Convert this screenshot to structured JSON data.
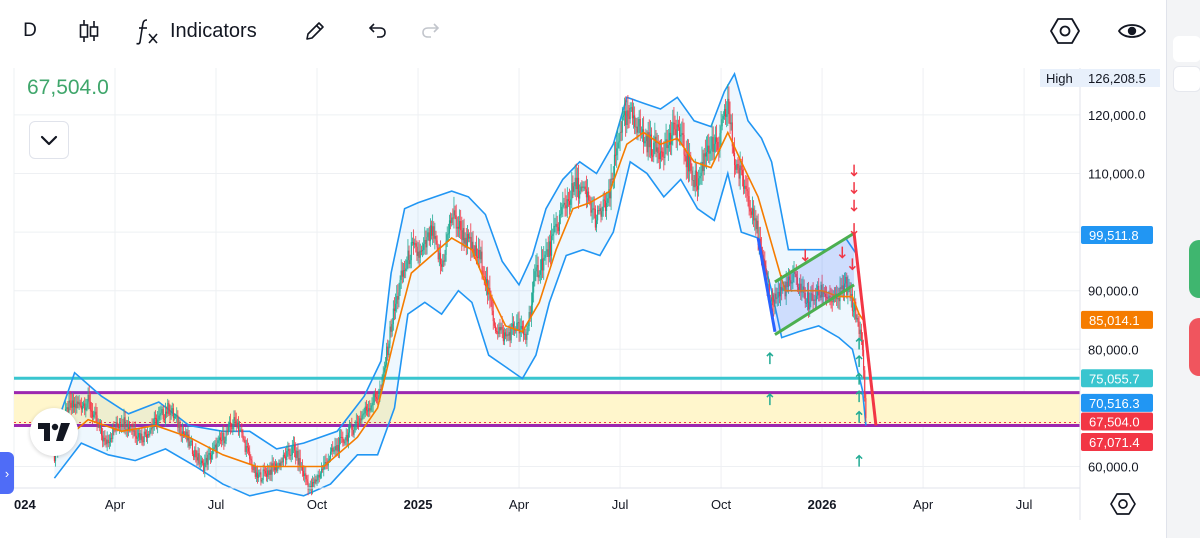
{
  "toolbar": {
    "timeframe": "D",
    "indicators_label": "Indicators",
    "icons": [
      "candles-icon",
      "fx-icon",
      "pencil-icon",
      "undo-icon",
      "redo-icon",
      "hexagon-settings-icon",
      "eye-icon"
    ]
  },
  "last_price_display": "67,504.0",
  "colors": {
    "up": "#22ab94",
    "down": "#f23645",
    "bollinger": "#2196f3",
    "ema": "#f57c00",
    "channel": "#4caf50",
    "cyan_line": "#39c5cf",
    "purple_line": "#9c27b0",
    "zone_fill": "#fff6cc"
  },
  "chart_data": {
    "type": "candlestick",
    "symbol_interval": "D",
    "price_axis": {
      "range": [
        57000,
        128000
      ],
      "ticks": [
        {
          "value": 60000,
          "label": "60,000.0"
        },
        {
          "value": 80000,
          "label": "80,000.0"
        },
        {
          "value": 90000,
          "label": "90,000.0"
        },
        {
          "value": 110000,
          "label": "110,000.0"
        },
        {
          "value": 120000,
          "label": "120,000.0"
        }
      ],
      "high_label": "High",
      "high_value": "126,208.5"
    },
    "time_axis": {
      "labels": [
        {
          "label": "024",
          "month_index": 0,
          "bold": true
        },
        {
          "label": "Apr",
          "month_index": 3,
          "bold": false
        },
        {
          "label": "Jul",
          "month_index": 6,
          "bold": false
        },
        {
          "label": "Oct",
          "month_index": 9,
          "bold": false
        },
        {
          "label": "2025",
          "month_index": 12,
          "bold": true
        },
        {
          "label": "Apr",
          "month_index": 15,
          "bold": false
        },
        {
          "label": "Jul",
          "month_index": 18,
          "bold": false
        },
        {
          "label": "Oct",
          "month_index": 21,
          "bold": false
        },
        {
          "label": "2026",
          "month_index": 24,
          "bold": true
        },
        {
          "label": "Apr",
          "month_index": 27,
          "bold": false
        },
        {
          "label": "Jul",
          "month_index": 30,
          "bold": false
        }
      ]
    },
    "price_path": [
      [
        1.2,
        62000
      ],
      [
        1.6,
        70000
      ],
      [
        2.2,
        71000
      ],
      [
        2.7,
        64000
      ],
      [
        3.2,
        68000
      ],
      [
        3.8,
        65000
      ],
      [
        4.6,
        70000
      ],
      [
        5.2,
        64000
      ],
      [
        5.6,
        60000
      ],
      [
        6.1,
        64000
      ],
      [
        6.6,
        68000
      ],
      [
        7.2,
        58000
      ],
      [
        7.8,
        60000
      ],
      [
        8.3,
        63000
      ],
      [
        8.8,
        56000
      ],
      [
        9.4,
        62000
      ],
      [
        10.0,
        66000
      ],
      [
        10.5,
        70000
      ],
      [
        10.9,
        73000
      ],
      [
        11.2,
        84000
      ],
      [
        11.5,
        92000
      ],
      [
        11.8,
        97000
      ],
      [
        12.1,
        96000
      ],
      [
        12.4,
        100000
      ],
      [
        12.7,
        94000
      ],
      [
        13.0,
        103000
      ],
      [
        13.3,
        100000
      ],
      [
        13.6,
        97000
      ],
      [
        13.9,
        95000
      ],
      [
        14.1,
        89000
      ],
      [
        14.3,
        84000
      ],
      [
        14.6,
        82000
      ],
      [
        14.9,
        84000
      ],
      [
        15.2,
        82000
      ],
      [
        15.5,
        93000
      ],
      [
        15.9,
        97000
      ],
      [
        16.3,
        104000
      ],
      [
        16.7,
        108000
      ],
      [
        17.0,
        106000
      ],
      [
        17.3,
        102000
      ],
      [
        17.7,
        106000
      ],
      [
        18.0,
        118000
      ],
      [
        18.4,
        120000
      ],
      [
        18.7,
        116000
      ],
      [
        19.1,
        114000
      ],
      [
        19.4,
        115000
      ],
      [
        19.7,
        118000
      ],
      [
        20.0,
        112000
      ],
      [
        20.3,
        108000
      ],
      [
        20.6,
        115000
      ],
      [
        20.9,
        114000
      ],
      [
        21.2,
        122000
      ],
      [
        21.4,
        112000
      ],
      [
        21.7,
        108000
      ],
      [
        22.0,
        103000
      ],
      [
        22.2,
        95000
      ],
      [
        22.5,
        88000
      ],
      [
        22.8,
        90000
      ],
      [
        23.2,
        92000
      ],
      [
        23.6,
        88000
      ],
      [
        24.0,
        90000
      ],
      [
        24.4,
        88000
      ],
      [
        24.7,
        91000
      ],
      [
        24.95,
        87000
      ],
      [
        25.1,
        84000
      ],
      [
        25.22,
        78000
      ],
      [
        25.3,
        67504
      ]
    ],
    "bollinger_bands": {
      "upper": [
        [
          1.2,
          66000
        ],
        [
          1.8,
          76000
        ],
        [
          2.6,
          72000
        ],
        [
          3.4,
          69000
        ],
        [
          4.3,
          71000
        ],
        [
          5.2,
          67000
        ],
        [
          6.2,
          66000
        ],
        [
          7.0,
          66000
        ],
        [
          7.8,
          63000
        ],
        [
          8.6,
          64000
        ],
        [
          9.6,
          66000
        ],
        [
          10.4,
          72000
        ],
        [
          10.9,
          78000
        ],
        [
          11.2,
          93000
        ],
        [
          11.6,
          104000
        ],
        [
          12.0,
          105000
        ],
        [
          12.5,
          106000
        ],
        [
          13.0,
          107000
        ],
        [
          13.5,
          106000
        ],
        [
          14.0,
          103000
        ],
        [
          14.5,
          95000
        ],
        [
          15.0,
          91000
        ],
        [
          15.4,
          96000
        ],
        [
          15.8,
          104000
        ],
        [
          16.3,
          109000
        ],
        [
          16.8,
          112000
        ],
        [
          17.3,
          110000
        ],
        [
          17.8,
          115000
        ],
        [
          18.2,
          123000
        ],
        [
          18.7,
          122000
        ],
        [
          19.2,
          121000
        ],
        [
          19.7,
          123000
        ],
        [
          20.2,
          119000
        ],
        [
          20.7,
          118000
        ],
        [
          21.1,
          124000
        ],
        [
          21.4,
          127000
        ],
        [
          21.8,
          119000
        ],
        [
          22.2,
          116000
        ],
        [
          22.5,
          112000
        ],
        [
          23.0,
          97000
        ],
        [
          23.6,
          97000
        ],
        [
          24.2,
          97000
        ],
        [
          24.7,
          99000
        ],
        [
          25.05,
          96000
        ]
      ],
      "lower": [
        [
          1.2,
          58000
        ],
        [
          2.0,
          64000
        ],
        [
          2.8,
          62000
        ],
        [
          3.6,
          61000
        ],
        [
          4.5,
          63000
        ],
        [
          5.4,
          60000
        ],
        [
          6.2,
          57000
        ],
        [
          7.0,
          55000
        ],
        [
          7.8,
          56000
        ],
        [
          8.6,
          55000
        ],
        [
          9.4,
          57000
        ],
        [
          10.2,
          62000
        ],
        [
          10.8,
          62000
        ],
        [
          11.3,
          70000
        ],
        [
          11.7,
          86000
        ],
        [
          12.2,
          88000
        ],
        [
          12.7,
          86000
        ],
        [
          13.2,
          90000
        ],
        [
          13.6,
          88000
        ],
        [
          14.1,
          79000
        ],
        [
          14.6,
          77000
        ],
        [
          15.1,
          75000
        ],
        [
          15.5,
          79000
        ],
        [
          15.9,
          88000
        ],
        [
          16.4,
          96000
        ],
        [
          16.9,
          97000
        ],
        [
          17.4,
          96000
        ],
        [
          17.8,
          100000
        ],
        [
          18.3,
          112000
        ],
        [
          18.8,
          110000
        ],
        [
          19.3,
          106000
        ],
        [
          19.8,
          109000
        ],
        [
          20.3,
          104000
        ],
        [
          20.8,
          102000
        ],
        [
          21.2,
          110000
        ],
        [
          21.6,
          100000
        ],
        [
          22.1,
          99000
        ],
        [
          22.5,
          90000
        ],
        [
          22.8,
          82000
        ],
        [
          23.3,
          83000
        ],
        [
          23.9,
          84000
        ],
        [
          24.5,
          82000
        ],
        [
          24.9,
          80000
        ],
        [
          25.2,
          73000
        ],
        [
          25.3,
          67000
        ]
      ]
    },
    "ema": [
      [
        1.2,
        63000
      ],
      [
        2.2,
        68000
      ],
      [
        3.2,
        66000
      ],
      [
        4.2,
        67000
      ],
      [
        5.2,
        65000
      ],
      [
        6.2,
        62000
      ],
      [
        7.2,
        60000
      ],
      [
        8.2,
        60000
      ],
      [
        9.2,
        60000
      ],
      [
        10.2,
        65000
      ],
      [
        10.8,
        70000
      ],
      [
        11.3,
        82000
      ],
      [
        11.8,
        93000
      ],
      [
        12.4,
        96000
      ],
      [
        13.0,
        99000
      ],
      [
        13.6,
        97000
      ],
      [
        14.1,
        90000
      ],
      [
        14.6,
        84000
      ],
      [
        15.1,
        83000
      ],
      [
        15.6,
        88000
      ],
      [
        16.1,
        97000
      ],
      [
        16.6,
        104000
      ],
      [
        17.1,
        105000
      ],
      [
        17.7,
        107000
      ],
      [
        18.2,
        115000
      ],
      [
        18.7,
        117000
      ],
      [
        19.2,
        115000
      ],
      [
        19.7,
        116000
      ],
      [
        20.2,
        112000
      ],
      [
        20.7,
        111000
      ],
      [
        21.2,
        117000
      ],
      [
        21.6,
        112000
      ],
      [
        22.1,
        106000
      ],
      [
        22.5,
        98000
      ],
      [
        22.9,
        90000
      ],
      [
        23.4,
        90000
      ],
      [
        24.0,
        90000
      ],
      [
        24.5,
        89000
      ],
      [
        24.9,
        89000
      ],
      [
        25.1,
        86000
      ],
      [
        25.22,
        85000
      ]
    ],
    "price_lines": [
      {
        "name": "cyan-level",
        "value": 75055.7,
        "label": "75,055.7",
        "color": "#39c5cf"
      },
      {
        "name": "purple-level-upper",
        "value": 72600,
        "label": "",
        "color": "#9c27b0"
      },
      {
        "name": "purple-level-lower",
        "value": 67000,
        "label": "",
        "color": "#9c27b0"
      }
    ],
    "price_labels": [
      {
        "name": "channel-top-label",
        "value": 99511.8,
        "label": "99,511.8",
        "color": "#2196f3"
      },
      {
        "name": "ema-label",
        "value": 85014.1,
        "label": "85,014.1",
        "color": "#f57c00"
      },
      {
        "name": "cyan-label",
        "value": 75055.7,
        "label": "75,055.7",
        "color": "#39c5cf"
      },
      {
        "name": "band-lower-label",
        "value": 70516.3,
        "label": "70,516.3",
        "color": "#2196f3"
      },
      {
        "name": "last-price-label",
        "value": 67504.0,
        "label": "67,504.0",
        "color": "#f23645"
      },
      {
        "name": "support-label",
        "value": 67071.4,
        "label": "67,071.4",
        "color": "#f23645"
      }
    ],
    "zone": {
      "top": 72600,
      "bottom": 67000
    },
    "channel": {
      "upper": [
        [
          22.6,
          91500
        ],
        [
          24.95,
          99800
        ]
      ],
      "lower": [
        [
          22.6,
          82500
        ],
        [
          24.95,
          91000
        ]
      ]
    },
    "trend_lines": [
      {
        "name": "blue-trend-line",
        "from": [
          22.1,
          99000
        ],
        "to": [
          22.6,
          83000
        ],
        "color": "#2962ff"
      },
      {
        "name": "red-projection-line",
        "from": [
          24.95,
          99800
        ],
        "to": [
          25.6,
          67000
        ],
        "color": "#f23645"
      }
    ],
    "signal_arrows": {
      "down": [
        [
          24.95,
          110500
        ],
        [
          24.95,
          107500
        ],
        [
          24.95,
          104500
        ],
        [
          24.95,
          100500
        ],
        [
          24.6,
          96500
        ],
        [
          24.9,
          94500
        ],
        [
          23.5,
          96000
        ]
      ],
      "up": [
        [
          22.45,
          78500
        ],
        [
          22.45,
          71500
        ],
        [
          25.1,
          81000
        ],
        [
          25.1,
          78000
        ],
        [
          25.1,
          75000
        ],
        [
          25.1,
          72000
        ],
        [
          25.1,
          68500
        ],
        [
          25.1,
          61000
        ]
      ]
    }
  }
}
